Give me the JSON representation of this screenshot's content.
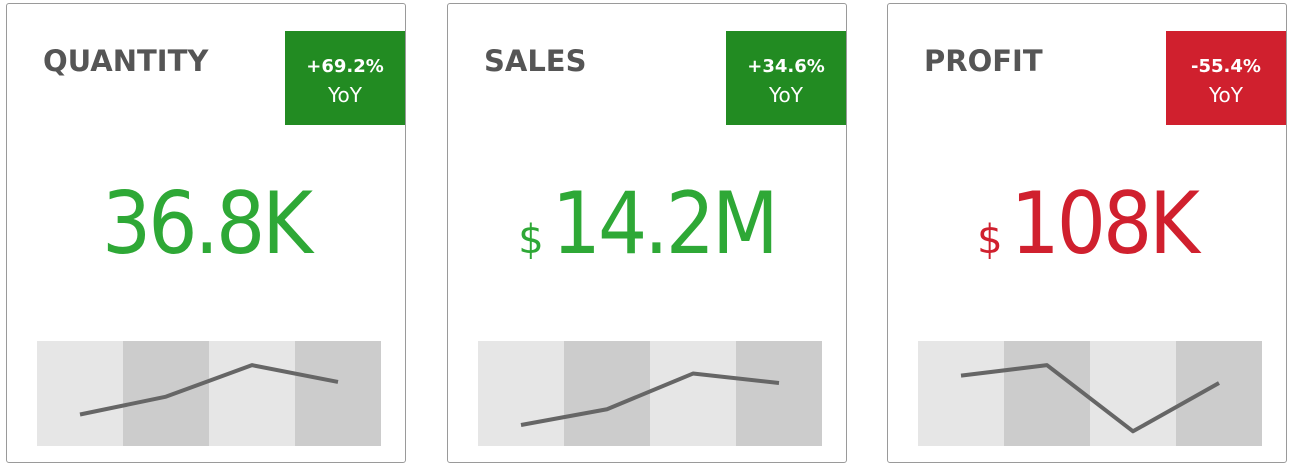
{
  "cards": [
    {
      "title": "QUANTITY",
      "change": "+69.2%",
      "change_label": "YoY",
      "badge_color": "#228b22",
      "currency": null,
      "value": "36.8K",
      "value_color": "#2ea836",
      "sparkline": {
        "values": [
          30,
          47,
          77,
          61
        ],
        "ylim": [
          0,
          100
        ]
      }
    },
    {
      "title": "SALES",
      "change": "+34.6%",
      "change_label": "YoY",
      "badge_color": "#228b22",
      "currency": "$",
      "value": "14.2M",
      "value_color": "#2ea836",
      "sparkline": {
        "values": [
          20,
          35,
          69,
          60
        ],
        "ylim": [
          0,
          100
        ]
      }
    },
    {
      "title": "PROFIT",
      "change": "-55.4%",
      "change_label": "YoY",
      "badge_color": "#d0202e",
      "currency": "$",
      "value": "108K",
      "value_color": "#d0202e",
      "sparkline": {
        "values": [
          67,
          77,
          14,
          60
        ],
        "ylim": [
          0,
          100
        ]
      }
    }
  ]
}
